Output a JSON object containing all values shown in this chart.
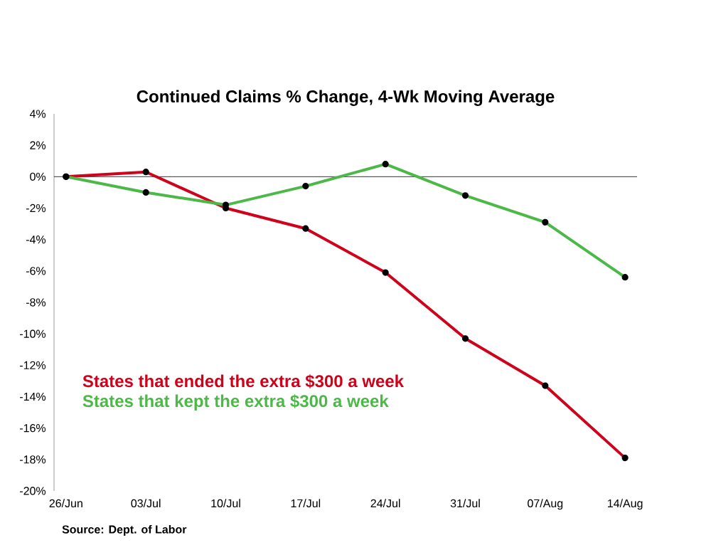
{
  "chart_data": {
    "type": "line",
    "title": "Continued Claims % Change, 4-Wk Moving Average",
    "categories": [
      "26/Jun",
      "03/Jul",
      "10/Jul",
      "17/Jul",
      "24/Jul",
      "31/Jul",
      "07/Aug",
      "14/Aug"
    ],
    "series": [
      {
        "name": "States that ended the extra $300 a week",
        "color": "#d0021b",
        "values": [
          0,
          0.3,
          -2.0,
          -3.3,
          -6.1,
          -10.3,
          -13.3,
          -17.9
        ]
      },
      {
        "name": "States that kept the extra $300 a week",
        "color": "#4cb847",
        "values": [
          0,
          -1.0,
          -1.8,
          -0.6,
          0.8,
          -1.2,
          -2.9,
          -6.4
        ]
      }
    ],
    "ylim": [
      -20,
      4
    ],
    "yticks": [
      {
        "value": 4,
        "label": "4%"
      },
      {
        "value": 2,
        "label": "2%"
      },
      {
        "value": 0,
        "label": "0%"
      },
      {
        "value": -2,
        "label": "-2%"
      },
      {
        "value": -4,
        "label": "-4%"
      },
      {
        "value": -6,
        "label": "-6%"
      },
      {
        "value": -8,
        "label": "-8%"
      },
      {
        "value": -10,
        "label": "-10%"
      },
      {
        "value": -12,
        "label": "-12%"
      },
      {
        "value": -14,
        "label": "-14%"
      },
      {
        "value": -16,
        "label": "-16%"
      },
      {
        "value": -18,
        "label": "-18%"
      },
      {
        "value": -20,
        "label": "-20%"
      }
    ],
    "ref_lines": [
      {
        "axis": "y",
        "value": 0,
        "color": "#000000"
      }
    ],
    "legend": "bottom left",
    "marker": "circle",
    "line_style": "solid",
    "annotations": [
      "Source: Dept. of Labor"
    ]
  }
}
